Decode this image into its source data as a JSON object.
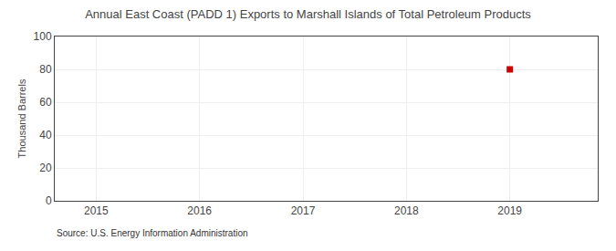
{
  "chart_data": {
    "type": "scatter",
    "title": "Annual East Coast (PADD 1) Exports to Marshall Islands of Total Petroleum Products",
    "ylabel": "Thousand Barrels",
    "annotations": [
      "Source: U.S. Energy Information Administration"
    ],
    "x": [
      2019
    ],
    "values": [
      80
    ],
    "color": "#cc0000",
    "marker": "square",
    "xlim": [
      2014.6,
      2019.85
    ],
    "xticks": [
      2015,
      2016,
      2017,
      2018,
      2019
    ],
    "ylim": [
      0,
      100
    ],
    "yticks": [
      0,
      20,
      40,
      60,
      80,
      100
    ],
    "grid": true
  }
}
